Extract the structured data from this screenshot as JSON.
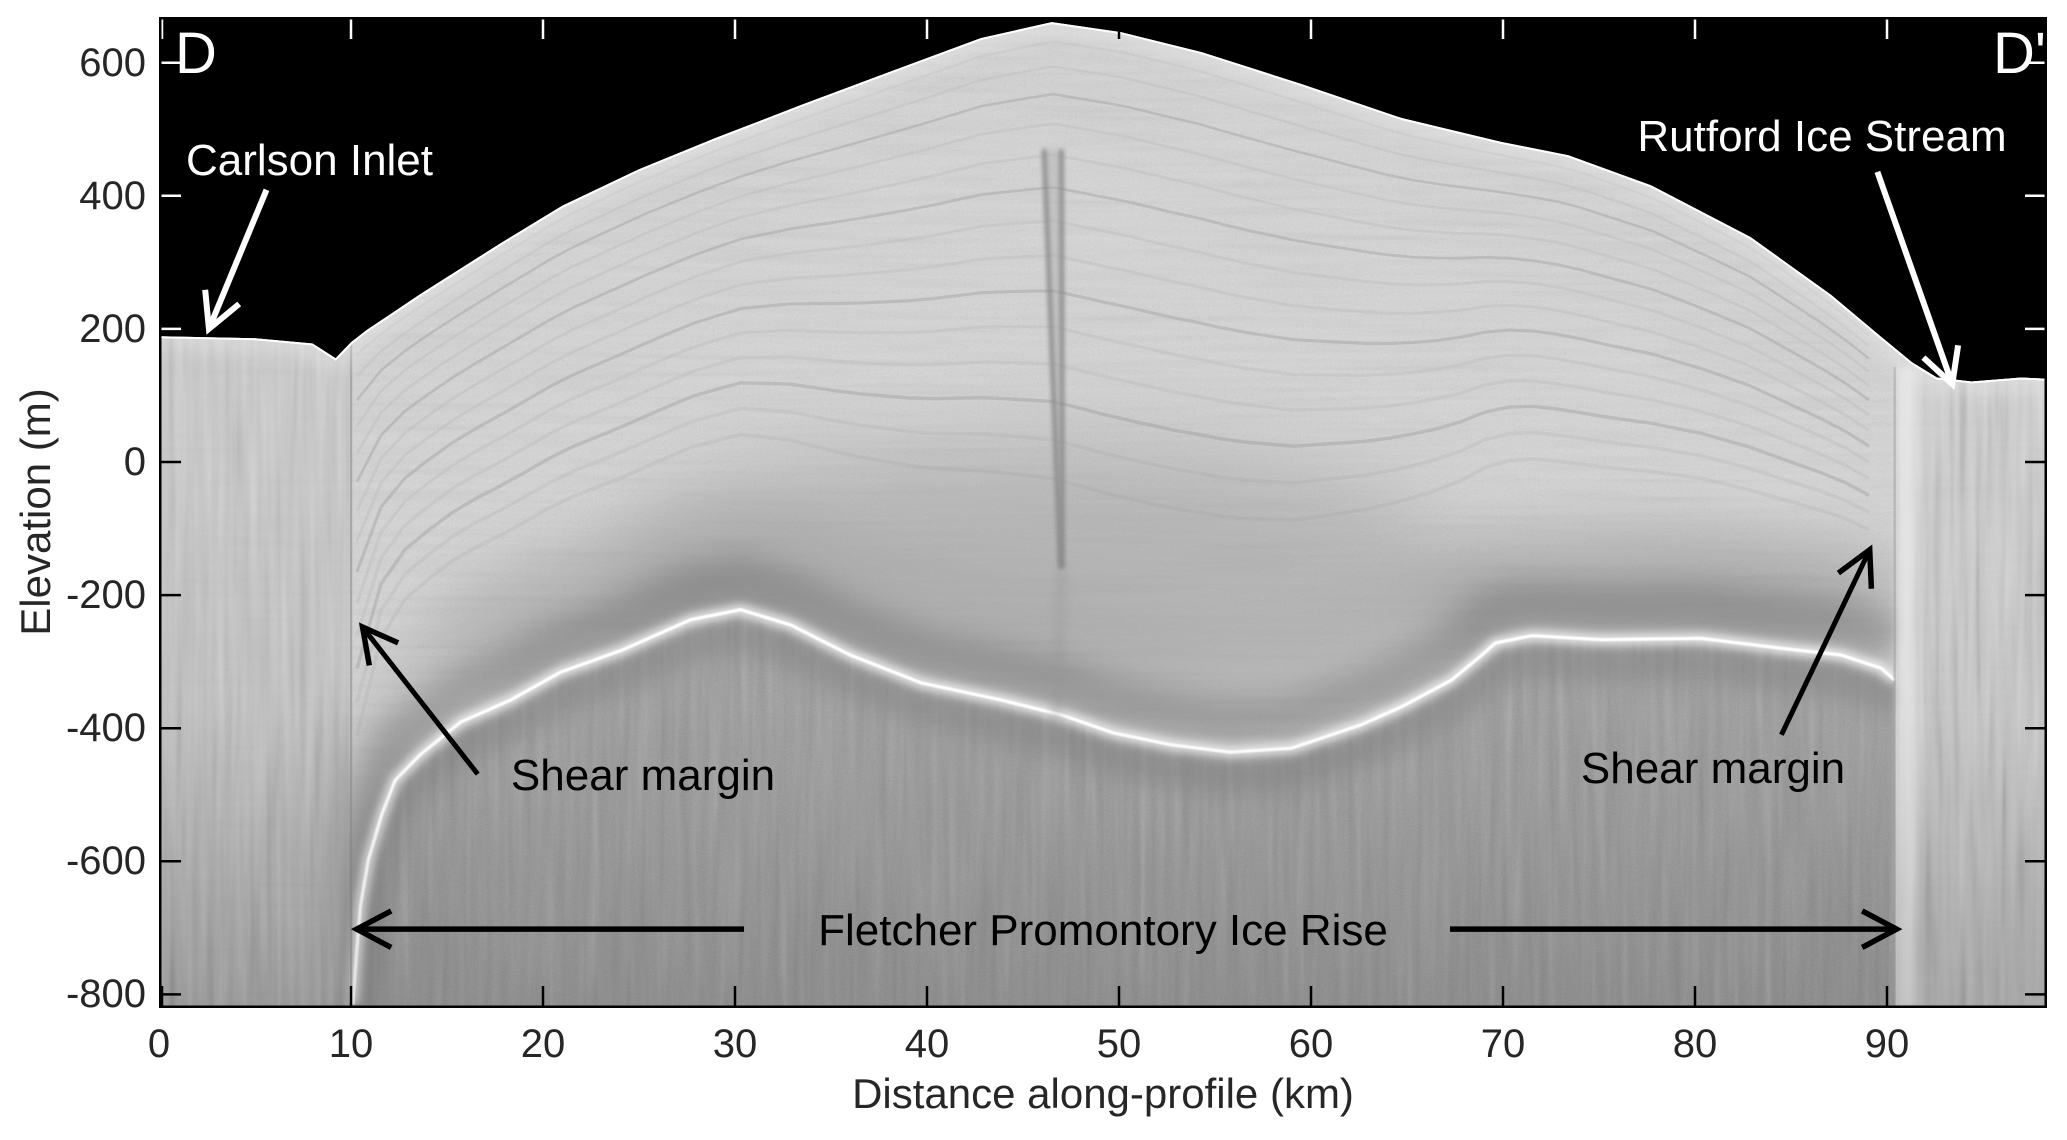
{
  "figure": {
    "panel_left": "D",
    "panel_right": "D'",
    "xlabel": "Distance along-profile (km)",
    "ylabel": "Elevation (m)",
    "labels": {
      "carlson": "Carlson Inlet",
      "rutford": "Rutford Ice Stream",
      "shear_left": "Shear margin",
      "shear_right": "Shear margin",
      "fletcher": "Fletcher Promontory Ice Rise"
    }
  },
  "chart_data": {
    "type": "heatmap",
    "description": "Grayscale ice-penetrating radar echogram (radargram) along profile D to D' across Fletcher Promontory Ice Rise, flanked by Carlson Inlet (left) and Rutford Ice Stream (right). Black = sky above ice surface; bright line = ice-bed reflector; shear margins at ~10 km and ~90 km.",
    "title": "",
    "xlabel": "Distance along-profile (km)",
    "ylabel": "Elevation (m)",
    "xlim": [
      0,
      98.3
    ],
    "ylim": [
      -819,
      668
    ],
    "x_ticks": [
      0,
      10,
      20,
      30,
      40,
      50,
      60,
      70,
      80,
      90
    ],
    "y_ticks": [
      600,
      400,
      200,
      0,
      -200,
      -400,
      -600,
      -800
    ],
    "grid": false,
    "legend": false,
    "series": [
      {
        "name": "ice-surface-elevation",
        "units": [
          "km",
          "m"
        ],
        "points": [
          [
            0,
            189
          ],
          [
            5,
            186
          ],
          [
            8,
            178
          ],
          [
            9.2,
            156
          ],
          [
            10,
            180
          ],
          [
            10.8,
            198
          ],
          [
            13.6,
            252
          ],
          [
            17.8,
            329
          ],
          [
            21,
            385
          ],
          [
            25,
            440
          ],
          [
            29,
            487
          ],
          [
            33.4,
            536
          ],
          [
            38.6,
            592
          ],
          [
            42.8,
            637
          ],
          [
            46.5,
            661
          ],
          [
            50.1,
            646
          ],
          [
            54.3,
            616
          ],
          [
            59.5,
            568
          ],
          [
            64.7,
            517
          ],
          [
            69.9,
            481
          ],
          [
            73.4,
            461
          ],
          [
            77.7,
            416
          ],
          [
            82.9,
            338
          ],
          [
            87.1,
            251
          ],
          [
            89.7,
            188
          ],
          [
            91.3,
            150
          ],
          [
            92.6,
            127
          ],
          [
            94.4,
            121
          ],
          [
            97,
            127
          ],
          [
            98.3,
            125
          ]
        ]
      },
      {
        "name": "bed-reflector-elevation",
        "units": [
          "km",
          "m"
        ],
        "points": [
          [
            10.1,
            -815
          ],
          [
            10.3,
            -733
          ],
          [
            10.5,
            -666
          ],
          [
            10.9,
            -598
          ],
          [
            11.6,
            -530
          ],
          [
            12.3,
            -478
          ],
          [
            13.6,
            -440
          ],
          [
            15.7,
            -391
          ],
          [
            18.3,
            -358
          ],
          [
            20.9,
            -316
          ],
          [
            24.1,
            -283
          ],
          [
            27.7,
            -237
          ],
          [
            30.3,
            -222
          ],
          [
            32.9,
            -245
          ],
          [
            36,
            -290
          ],
          [
            39.7,
            -332
          ],
          [
            43.9,
            -358
          ],
          [
            47,
            -380
          ],
          [
            49.7,
            -407
          ],
          [
            52.7,
            -425
          ],
          [
            55.8,
            -436
          ],
          [
            59,
            -430
          ],
          [
            62.6,
            -395
          ],
          [
            64.7,
            -368
          ],
          [
            67.3,
            -328
          ],
          [
            68.9,
            -290
          ],
          [
            69.6,
            -272
          ],
          [
            71.5,
            -261
          ],
          [
            75.1,
            -267
          ],
          [
            80.3,
            -265
          ],
          [
            84.5,
            -280
          ],
          [
            87.6,
            -290
          ],
          [
            89.7,
            -310
          ],
          [
            90.4,
            -328
          ]
        ]
      }
    ],
    "features": {
      "left_shear_margin_km": 10.0,
      "right_shear_margin_km": 90.4,
      "ice_divide_km": 46.5,
      "summit_elevation_m": 661,
      "englacial_spike": {
        "top_km": [
          46.1,
          47.0
        ],
        "top_elev_m": 470,
        "tip_km": 47.0,
        "tip_elev_m": -160
      }
    },
    "annotations": [
      {
        "text": "D",
        "color": "#ffffff",
        "x": 1.0,
        "y": 615
      },
      {
        "text": "D'",
        "color": "#ffffff",
        "x": 96.3,
        "y": 615
      },
      {
        "text": "Carlson Inlet",
        "color": "#ffffff",
        "x": 9.0,
        "y": 430,
        "arrow_from": [
          5.6,
          409
        ],
        "arrow_to": [
          2.6,
          200
        ]
      },
      {
        "text": "Rutford Ice Stream",
        "color": "#ffffff",
        "x": 86.6,
        "y": 465,
        "arrow_from": [
          89.5,
          436
        ],
        "arrow_to": [
          93.4,
          117
        ]
      },
      {
        "text": "Shear margin",
        "color": "#000000",
        "x": 25.0,
        "y": -497,
        "arrow_from": [
          16.6,
          -469
        ],
        "arrow_to": [
          10.6,
          -248
        ]
      },
      {
        "text": "Shear margin",
        "color": "#000000",
        "x": 80.9,
        "y": -486,
        "arrow_from": [
          84.5,
          -410
        ],
        "arrow_to": [
          89.1,
          -132
        ]
      },
      {
        "text": "Fletcher Promontory Ice Rise",
        "color": "#000000",
        "x": 49.2,
        "y": -702,
        "double_arrow_from": [
          10.3,
          -702
        ],
        "double_arrow_to": [
          90.5,
          -702
        ]
      }
    ],
    "colors": {
      "sky": "#000000",
      "ice": "#d6d6d6",
      "bed_line": "#ffffff",
      "below_bed": "#999999",
      "dark_band": "#6e6e6e",
      "tick_on_dark": "#ffffff",
      "tick_on_light": "#000000",
      "label_text": "#262626"
    }
  }
}
